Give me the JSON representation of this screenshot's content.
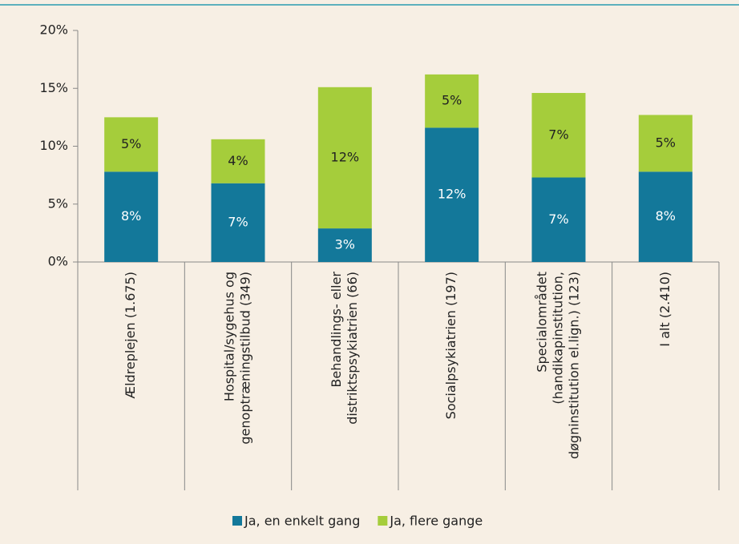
{
  "chart_data": {
    "type": "stacked_bar",
    "categories": [
      [
        "Ældreplejen (1.675)"
      ],
      [
        "Hospital/sygehus og",
        "genoptræningstilbud (349)"
      ],
      [
        "Behandlings- eller",
        "distriktspsykiatrien (66)"
      ],
      [
        "Socialpsykiatrien (197)"
      ],
      [
        "Specialområdet",
        "(handikapinstitution,",
        "døgninstitution el.lign.) (123)"
      ],
      [
        "I alt (2.410)"
      ]
    ],
    "series": [
      {
        "name": "Ja, en enkelt gang",
        "color": "#13789a",
        "values": [
          7.8,
          6.8,
          2.9,
          11.6,
          7.3,
          7.8
        ],
        "value_labels": [
          "8%",
          "7%",
          "3%",
          "12%",
          "7%",
          "8%"
        ]
      },
      {
        "name": "Ja, flere gange",
        "color": "#a5cd3b",
        "values": [
          4.7,
          3.8,
          12.2,
          4.6,
          7.3,
          4.9
        ],
        "value_labels": [
          "5%",
          "4%",
          "12%",
          "5%",
          "7%",
          "5%"
        ]
      }
    ],
    "ylim": [
      0,
      20
    ],
    "yticks": [
      {
        "value": 0,
        "label": "0%"
      },
      {
        "value": 5,
        "label": "5%"
      },
      {
        "value": 10,
        "label": "10%"
      },
      {
        "value": 15,
        "label": "15%"
      },
      {
        "value": 20,
        "label": "20%"
      }
    ],
    "grid": false,
    "legend": "bottom"
  }
}
